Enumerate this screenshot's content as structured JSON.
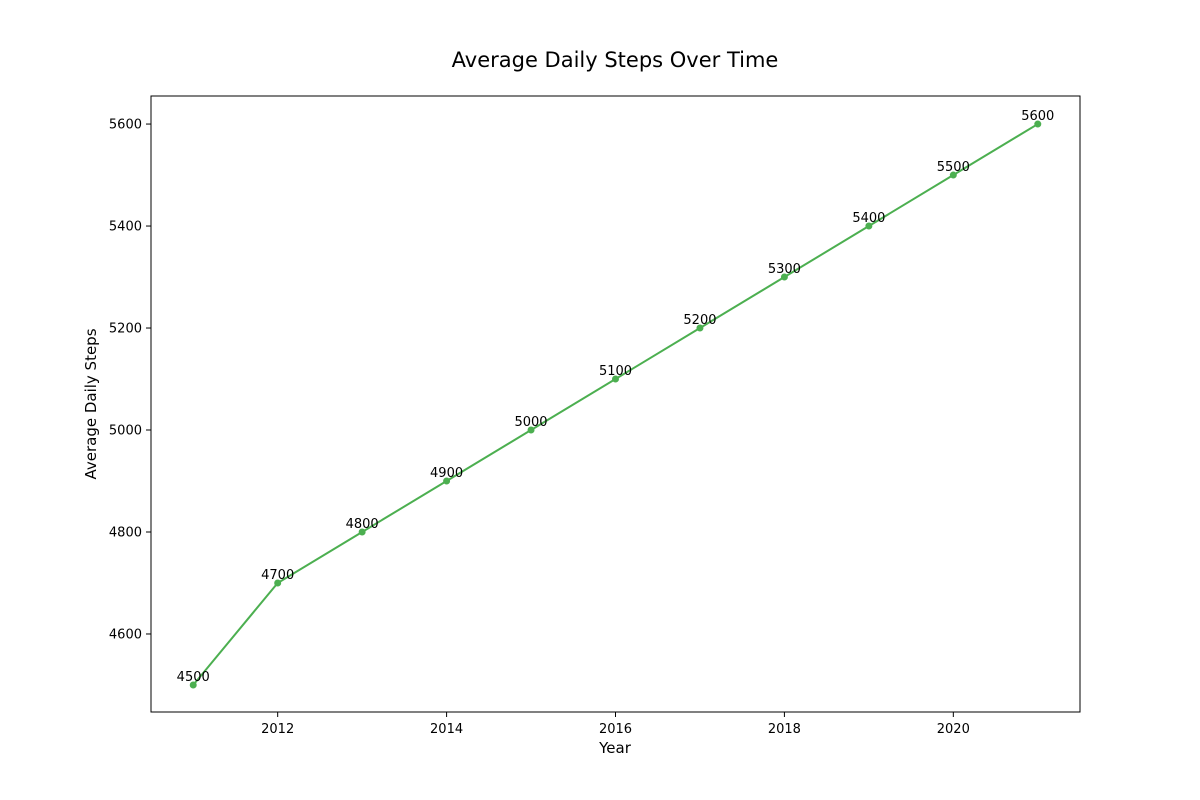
{
  "chart_data": {
    "type": "line",
    "title": "Average Daily Steps Over Time",
    "xlabel": "Year",
    "ylabel": "Average Daily Steps",
    "x": [
      2011,
      2012,
      2013,
      2014,
      2015,
      2016,
      2017,
      2018,
      2019,
      2020,
      2021
    ],
    "series": [
      {
        "values": [
          4500,
          4700,
          4800,
          4900,
          5000,
          5100,
          5200,
          5300,
          5400,
          5500,
          5600
        ]
      }
    ],
    "xlim": [
      2010.5,
      2021.5
    ],
    "ylim": [
      4447,
      5655
    ],
    "xticks": [
      2012,
      2014,
      2016,
      2018,
      2020
    ],
    "yticks": [
      4600,
      4800,
      5000,
      5200,
      5400,
      5600
    ],
    "line_color": "#4caf50",
    "grid": false,
    "legend": false
  }
}
